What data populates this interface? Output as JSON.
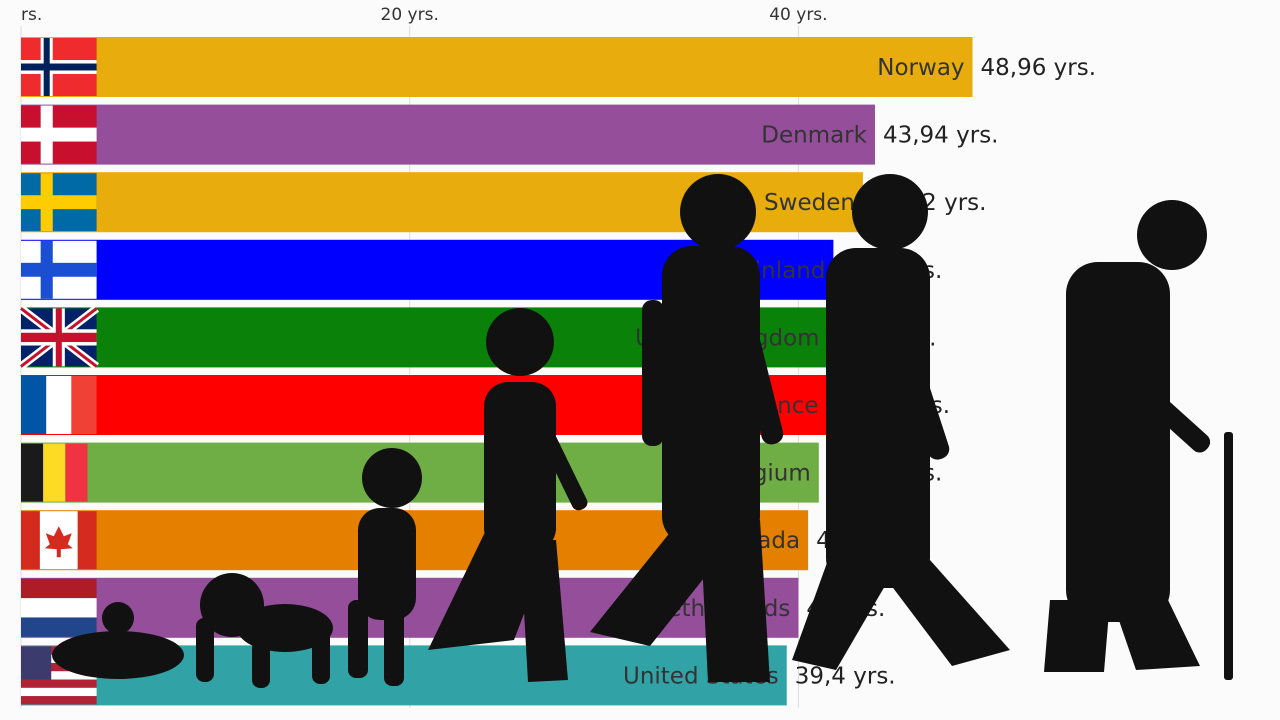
{
  "chart_data": {
    "type": "bar",
    "orientation": "horizontal",
    "x_ticks": [
      {
        "value": 0,
        "label": "rs."
      },
      {
        "value": 20,
        "label": "20 yrs."
      },
      {
        "value": 40,
        "label": "40 yrs."
      }
    ],
    "xlim": [
      0,
      48.96
    ],
    "grid": true,
    "categories": [
      "Norway",
      "Denmark",
      "Sweden",
      "Finland",
      "United Kingdom",
      "France",
      "Belgium",
      "Canada",
      "Netherlands",
      "United States"
    ],
    "values": [
      48.96,
      43.94,
      43.32,
      41.8,
      41.5,
      41.45,
      41.05,
      40.5,
      40.0,
      39.4
    ],
    "value_labels": [
      "48,96 yrs.",
      "43,94 yrs.",
      "43,32 yrs.",
      "41,8 yrs.",
      "41,5 yrs.",
      "41,45 yrs.",
      "41,05 yrs.",
      "40,5 yrs.",
      "40 yrs.",
      "39,4 yrs."
    ],
    "colors": [
      "#e8ad0c",
      "#944e9a",
      "#e8ad0c",
      "#0000ff",
      "#0a820a",
      "#ff0000",
      "#6fad45",
      "#e57f00",
      "#944e9a",
      "#31a3a6"
    ],
    "flags": [
      "norway-flag",
      "denmark-flag",
      "sweden-flag",
      "finland-flag",
      "united-kingdom-flag",
      "france-flag",
      "belgium-flag",
      "canada-flag",
      "netherlands-flag",
      "united-states-flag"
    ]
  },
  "overlay": {
    "description_icon": "human-life-stages-silhouettes"
  }
}
